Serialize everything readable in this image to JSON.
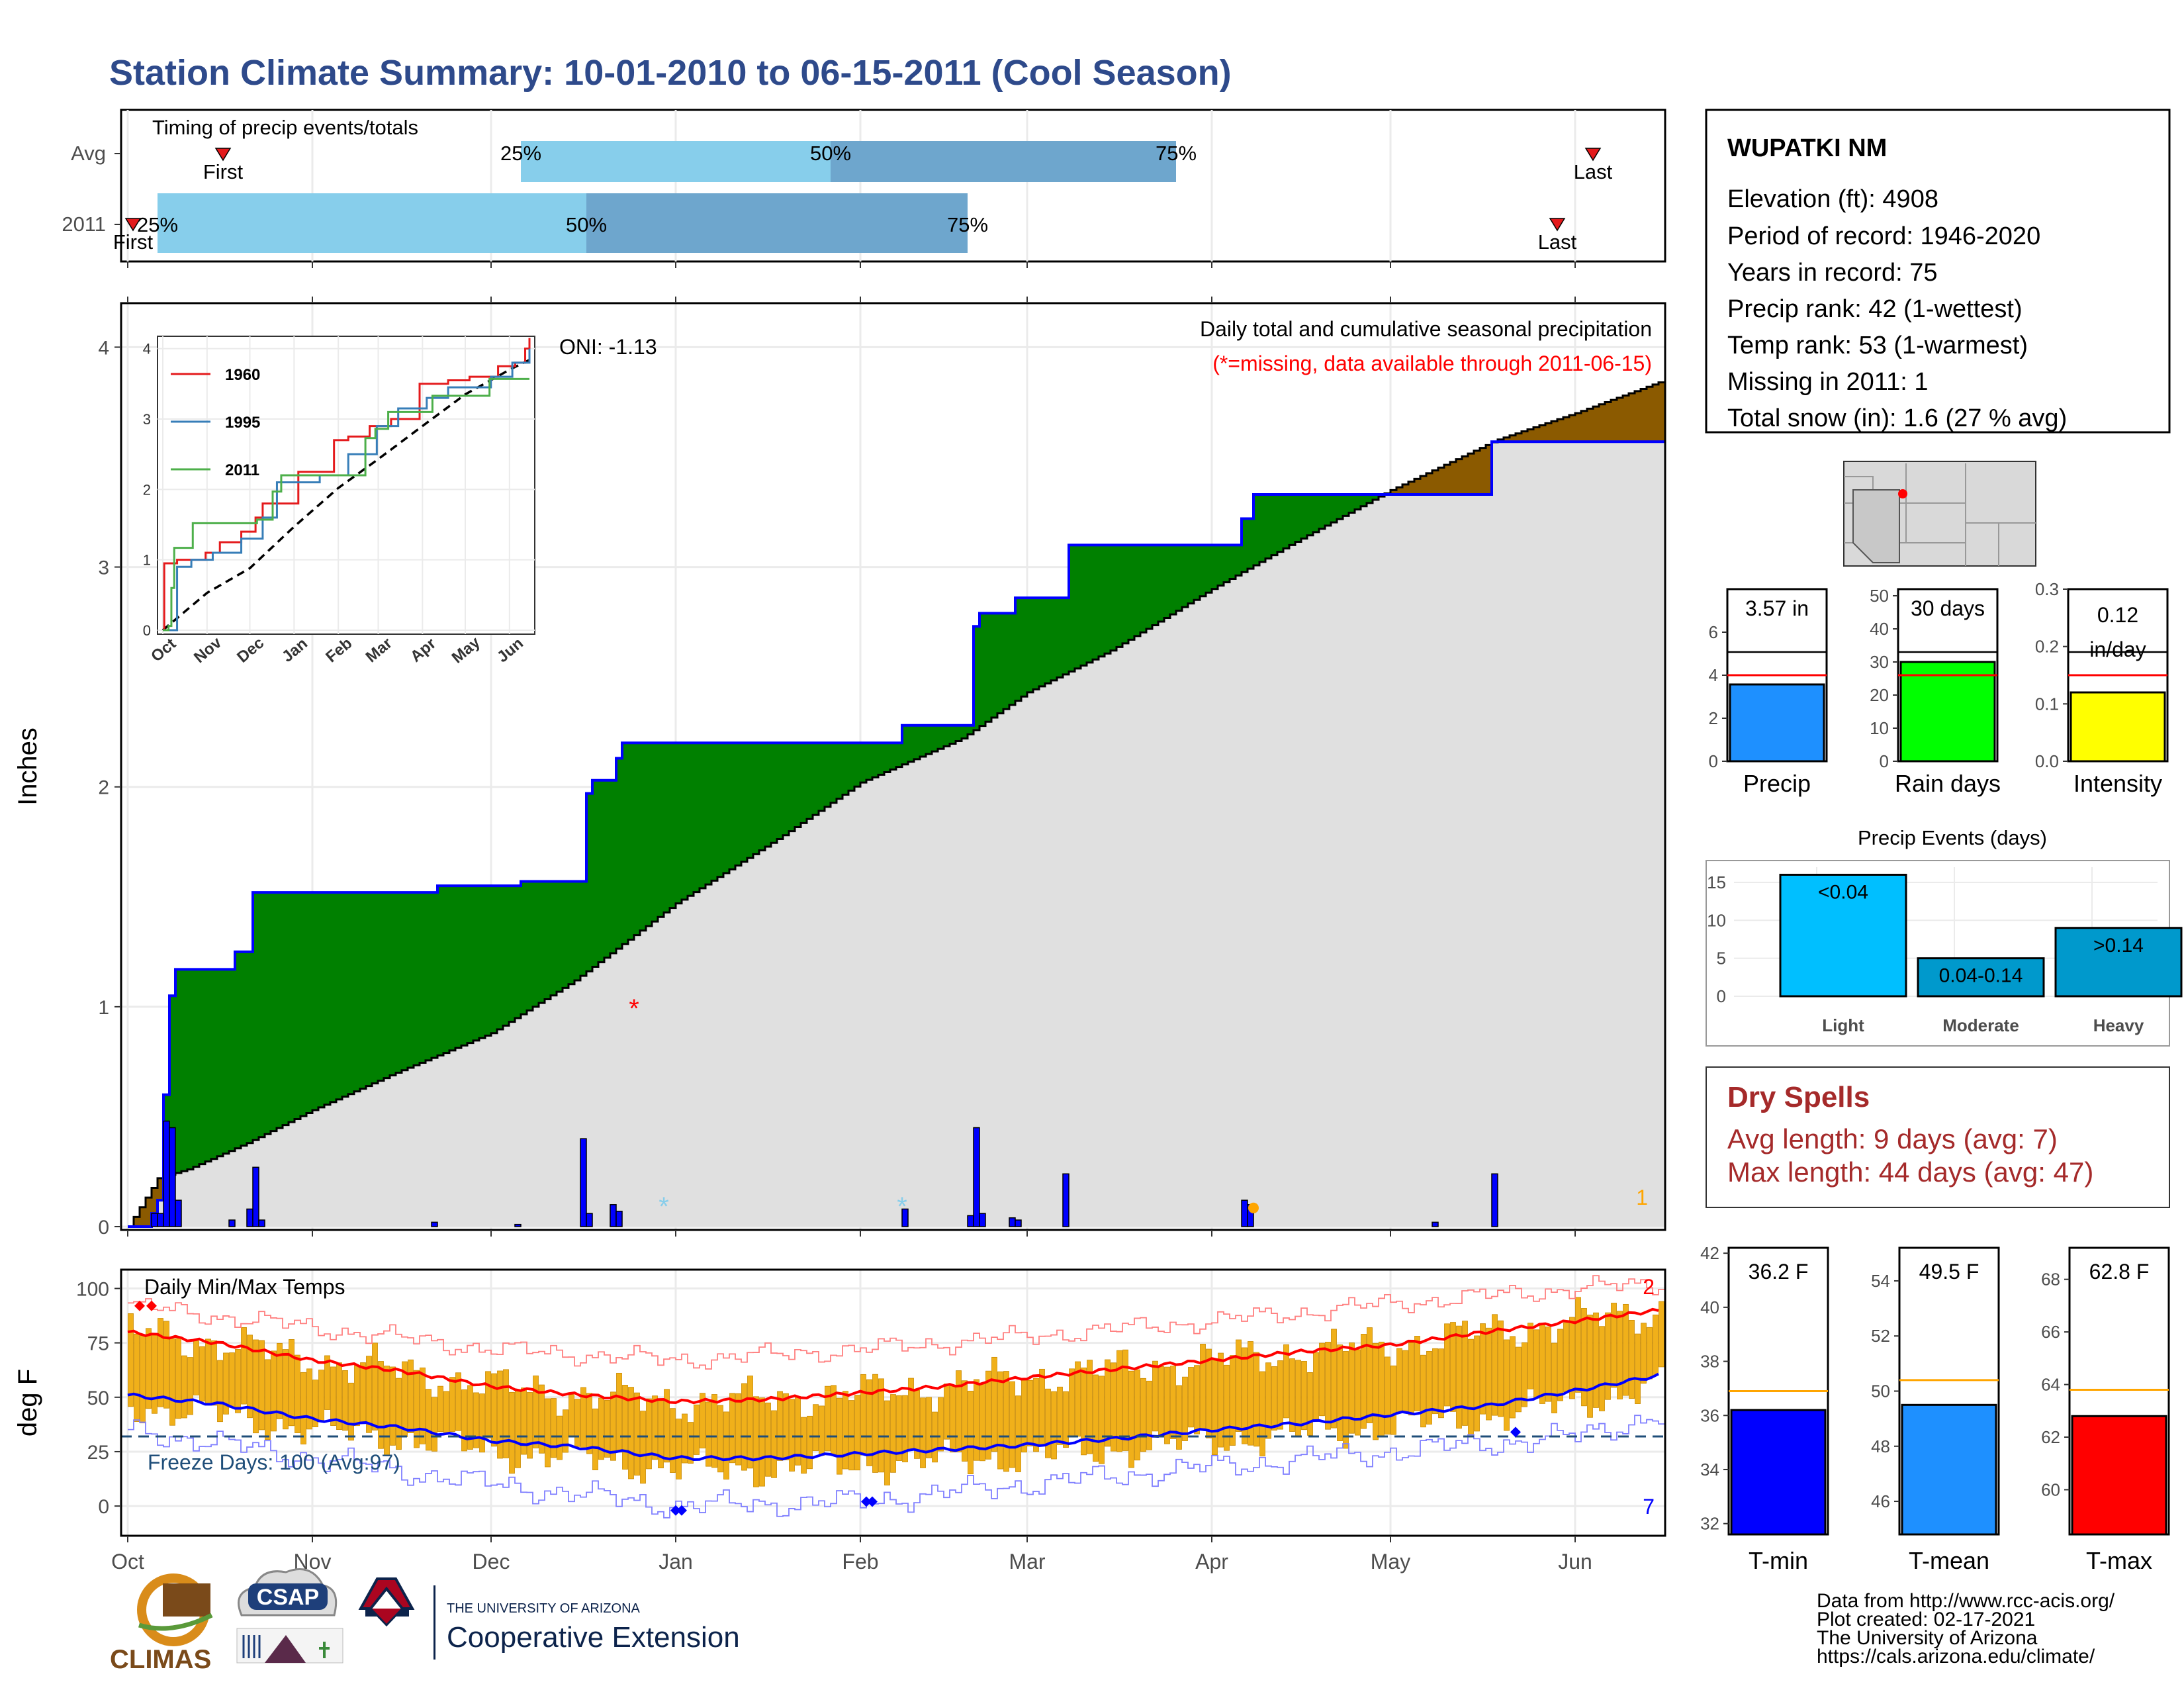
{
  "title": "Station Climate Summary: 10-01-2010 to 06-15-2011 (Cool Season)",
  "timing": {
    "title": "Timing of precip events/totals",
    "rows": [
      "Avg",
      "2011"
    ],
    "avg": {
      "first_day": 16,
      "last_day": 246,
      "q25_day": 66,
      "q50_day": 118,
      "q75_day": 176
    },
    "y2011": {
      "first_day": 0,
      "last_day": 240,
      "q25_day": 5,
      "q50_day": 77,
      "q75_day": 141
    },
    "q_labels": [
      "25%",
      "50%",
      "75%"
    ],
    "first_label": "First",
    "last_label": "Last",
    "colors": {
      "light": "#87ceeb",
      "dark": "#6ea6cd",
      "marker": "#e41a1c"
    }
  },
  "station": {
    "name": "WUPATKI NM",
    "lines": [
      "Elevation (ft): 4908",
      "Period of record: 1946-2020",
      "Years in record: 75",
      "Precip rank: 42 (1-wettest)",
      "Temp rank: 53 (1-warmest)",
      "Missing in 2011: 1",
      "Total snow (in): 1.6 (27 % avg)"
    ]
  },
  "chart_data": [
    {
      "type": "area",
      "name": "precip-main",
      "title": "Daily total and cumulative seasonal precipitation",
      "subtitle": "(*=missing, data available through 2011-06-15)",
      "oni": "ONI: -1.13",
      "ylabel": "Inches",
      "ylim": [
        0,
        4.2
      ],
      "yticks": [
        0,
        1,
        2,
        3,
        4
      ],
      "xticks": [
        {
          "label": "Oct",
          "day": 0
        },
        {
          "label": "Nov",
          "day": 31
        },
        {
          "label": "Dec",
          "day": 61
        },
        {
          "label": "Jan",
          "day": 92
        },
        {
          "label": "Feb",
          "day": 123
        },
        {
          "label": "Mar",
          "day": 151
        },
        {
          "label": "Apr",
          "day": 182
        },
        {
          "label": "May",
          "day": 212
        },
        {
          "label": "Jun",
          "day": 243
        }
      ],
      "xlim": [
        0,
        257
      ],
      "avg_cumulative": [
        [
          0,
          0.0
        ],
        [
          5,
          0.22
        ],
        [
          10,
          0.26
        ],
        [
          20,
          0.38
        ],
        [
          31,
          0.53
        ],
        [
          45,
          0.7
        ],
        [
          61,
          0.88
        ],
        [
          75,
          1.12
        ],
        [
          92,
          1.47
        ],
        [
          110,
          1.78
        ],
        [
          123,
          2.02
        ],
        [
          140,
          2.22
        ],
        [
          151,
          2.43
        ],
        [
          165,
          2.62
        ],
        [
          182,
          2.9
        ],
        [
          195,
          3.1
        ],
        [
          212,
          3.35
        ],
        [
          230,
          3.58
        ],
        [
          243,
          3.7
        ],
        [
          257,
          3.84
        ]
      ],
      "obs_cumulative": [
        [
          0,
          0.0
        ],
        [
          4,
          0.06
        ],
        [
          5,
          0.12
        ],
        [
          6,
          0.6
        ],
        [
          7,
          1.05
        ],
        [
          8,
          1.17
        ],
        [
          17,
          1.17
        ],
        [
          18,
          1.25
        ],
        [
          20,
          1.25
        ],
        [
          21,
          1.52
        ],
        [
          51,
          1.52
        ],
        [
          52,
          1.55
        ],
        [
          65,
          1.55
        ],
        [
          66,
          1.57
        ],
        [
          76,
          1.57
        ],
        [
          77,
          1.97
        ],
        [
          78,
          2.03
        ],
        [
          81,
          2.03
        ],
        [
          82,
          2.13
        ],
        [
          83,
          2.2
        ],
        [
          129,
          2.2
        ],
        [
          130,
          2.28
        ],
        [
          141,
          2.28
        ],
        [
          142,
          2.73
        ],
        [
          143,
          2.79
        ],
        [
          148,
          2.79
        ],
        [
          149,
          2.86
        ],
        [
          157,
          2.86
        ],
        [
          158,
          3.1
        ],
        [
          186,
          3.1
        ],
        [
          187,
          3.22
        ],
        [
          189,
          3.33
        ],
        [
          228,
          3.33
        ],
        [
          229,
          3.57
        ],
        [
          257,
          3.57
        ]
      ],
      "daily_precip": [
        [
          4,
          0.06
        ],
        [
          5,
          0.06
        ],
        [
          6,
          0.48
        ],
        [
          7,
          0.45
        ],
        [
          8,
          0.12
        ],
        [
          17,
          0.03
        ],
        [
          20,
          0.08
        ],
        [
          21,
          0.27
        ],
        [
          22,
          0.03
        ],
        [
          51,
          0.02
        ],
        [
          65,
          0.01
        ],
        [
          76,
          0.4
        ],
        [
          77,
          0.06
        ],
        [
          81,
          0.1
        ],
        [
          82,
          0.07
        ],
        [
          130,
          0.08
        ],
        [
          141,
          0.05
        ],
        [
          142,
          0.45
        ],
        [
          143,
          0.06
        ],
        [
          148,
          0.04
        ],
        [
          149,
          0.03
        ],
        [
          157,
          0.24
        ],
        [
          187,
          0.12
        ],
        [
          188,
          0.1
        ],
        [
          219,
          0.02
        ],
        [
          229,
          0.24
        ]
      ],
      "missing_markers": [
        {
          "day": 85,
          "value": 1.0,
          "symbol": "*",
          "color": "#ff0000"
        }
      ],
      "snow_markers": [
        {
          "day": 90,
          "value": 0.1,
          "symbol": "*",
          "color": "#87ceeb"
        },
        {
          "day": 130,
          "value": 0.1,
          "symbol": "*",
          "color": "#87ceeb"
        }
      ],
      "event_marker": {
        "day": 189,
        "value": 0.1,
        "color": "#ffa500"
      },
      "corner_count": "1",
      "colors": {
        "above": "#008000",
        "below": "#8b5a00",
        "avg_fill": "#e0e0e0",
        "obs_line": "#0000ff",
        "avg_line": "#000000",
        "bars": "#0000ff"
      }
    },
    {
      "type": "line",
      "name": "analog-years-inset",
      "xticks": [
        "Oct",
        "Nov",
        "Dec",
        "Jan",
        "Feb",
        "Mar",
        "Apr",
        "May",
        "Jun"
      ],
      "ylim": [
        0,
        4.1
      ],
      "yticks": [
        0,
        1,
        2,
        3,
        4
      ],
      "series": [
        {
          "name": "1960",
          "color": "#e41a1c",
          "values": [
            [
              0,
              0.0
            ],
            [
              1,
              0.95
            ],
            [
              8,
              0.95
            ],
            [
              10,
              1.0
            ],
            [
              30,
              1.1
            ],
            [
              40,
              1.25
            ],
            [
              55,
              1.4
            ],
            [
              65,
              1.6
            ],
            [
              70,
              1.8
            ],
            [
              85,
              1.8
            ],
            [
              95,
              2.25
            ],
            [
              110,
              2.25
            ],
            [
              120,
              2.7
            ],
            [
              130,
              2.75
            ],
            [
              145,
              2.9
            ],
            [
              160,
              3.0
            ],
            [
              180,
              3.5
            ],
            [
              200,
              3.55
            ],
            [
              215,
              3.6
            ],
            [
              235,
              3.75
            ],
            [
              247,
              3.8
            ],
            [
              254,
              4.0
            ],
            [
              257,
              4.15
            ]
          ]
        },
        {
          "name": "1995",
          "color": "#377eb8",
          "values": [
            [
              0,
              0.0
            ],
            [
              6,
              0.0
            ],
            [
              10,
              0.9
            ],
            [
              20,
              1.0
            ],
            [
              35,
              1.1
            ],
            [
              55,
              1.3
            ],
            [
              70,
              1.6
            ],
            [
              80,
              2.1
            ],
            [
              100,
              2.1
            ],
            [
              110,
              2.2
            ],
            [
              130,
              2.5
            ],
            [
              150,
              2.9
            ],
            [
              165,
              3.15
            ],
            [
              185,
              3.3
            ],
            [
              200,
              3.45
            ],
            [
              230,
              3.6
            ],
            [
              245,
              3.8
            ],
            [
              257,
              4.0
            ]
          ]
        },
        {
          "name": "2011",
          "color": "#4daf4a",
          "values": [
            [
              0,
              0.0
            ],
            [
              4,
              0.06
            ],
            [
              6,
              0.6
            ],
            [
              8,
              1.17
            ],
            [
              21,
              1.52
            ],
            [
              66,
              1.57
            ],
            [
              77,
              1.97
            ],
            [
              83,
              2.2
            ],
            [
              129,
              2.2
            ],
            [
              142,
              2.73
            ],
            [
              149,
              2.86
            ],
            [
              158,
              3.1
            ],
            [
              189,
              3.33
            ],
            [
              228,
              3.33
            ],
            [
              229,
              3.57
            ],
            [
              257,
              3.57
            ]
          ]
        }
      ],
      "avg_values": [
        [
          0,
          0.0
        ],
        [
          31,
          0.53
        ],
        [
          61,
          0.88
        ],
        [
          92,
          1.47
        ],
        [
          123,
          2.02
        ],
        [
          151,
          2.43
        ],
        [
          182,
          2.9
        ],
        [
          212,
          3.35
        ],
        [
          243,
          3.7
        ],
        [
          257,
          3.84
        ]
      ]
    },
    {
      "type": "bar",
      "name": "daily-temps",
      "title": "Daily Min/Max Temps",
      "ylabel": "deg F",
      "ylim": [
        -10,
        105
      ],
      "yticks": [
        0,
        25,
        50,
        75,
        100
      ],
      "freeze_label": "Freeze Days: 100 (Avg:97)",
      "freeze_line": 32,
      "count_top": "2",
      "count_bottom": "7",
      "avg_max": [
        [
          0,
          80
        ],
        [
          15,
          75
        ],
        [
          31,
          67
        ],
        [
          46,
          62
        ],
        [
          61,
          55
        ],
        [
          76,
          51
        ],
        [
          92,
          48
        ],
        [
          107,
          49
        ],
        [
          123,
          52
        ],
        [
          137,
          55
        ],
        [
          151,
          59
        ],
        [
          166,
          63
        ],
        [
          182,
          67
        ],
        [
          197,
          71
        ],
        [
          212,
          74
        ],
        [
          228,
          80
        ],
        [
          243,
          85
        ],
        [
          257,
          90
        ]
      ],
      "avg_min": [
        [
          0,
          51
        ],
        [
          15,
          47
        ],
        [
          31,
          40
        ],
        [
          46,
          36
        ],
        [
          61,
          30
        ],
        [
          76,
          27
        ],
        [
          92,
          22
        ],
        [
          107,
          22
        ],
        [
          123,
          24
        ],
        [
          137,
          26
        ],
        [
          151,
          28
        ],
        [
          166,
          31
        ],
        [
          182,
          35
        ],
        [
          197,
          38
        ],
        [
          212,
          42
        ],
        [
          228,
          46
        ],
        [
          243,
          53
        ],
        [
          257,
          60
        ]
      ],
      "record_high_base": [
        [
          0,
          92
        ],
        [
          31,
          82
        ],
        [
          61,
          72
        ],
        [
          92,
          67
        ],
        [
          123,
          72
        ],
        [
          151,
          78
        ],
        [
          182,
          85
        ],
        [
          212,
          93
        ],
        [
          243,
          100
        ],
        [
          257,
          102
        ]
      ],
      "record_low_base": [
        [
          0,
          35
        ],
        [
          31,
          22
        ],
        [
          61,
          10
        ],
        [
          92,
          0
        ],
        [
          123,
          2
        ],
        [
          151,
          10
        ],
        [
          182,
          18
        ],
        [
          212,
          25
        ],
        [
          243,
          32
        ],
        [
          257,
          42
        ]
      ],
      "marker_days_high": [
        2,
        4
      ],
      "marker_days_low": [
        92,
        93,
        124,
        125,
        233
      ],
      "colors": {
        "bars": "#f0b01a",
        "bar_edge": "#c98a00",
        "avg_max": "#ff0000",
        "avg_min": "#0000ff",
        "rec_high": "#ff8080",
        "rec_low": "#8080ff",
        "freeze": "#1f4e79"
      }
    },
    {
      "type": "bar",
      "name": "precip-summary",
      "categories": [
        "Precip",
        "Rain days",
        "Intensity"
      ],
      "panels": [
        {
          "label": "Precip",
          "value": 3.57,
          "avg": 4.0,
          "ylim": [
            0,
            8
          ],
          "yticks": [
            0,
            2,
            4,
            6
          ],
          "color": "#1e90ff",
          "box_lines": [
            "3.57 in"
          ]
        },
        {
          "label": "Rain days",
          "value": 30,
          "avg": 26,
          "ylim": [
            0,
            52
          ],
          "yticks": [
            0,
            10,
            20,
            30,
            40,
            50
          ],
          "color": "#00ff00",
          "box_lines": [
            "30 days"
          ]
        },
        {
          "label": "Intensity",
          "value": 0.12,
          "avg": 0.15,
          "ylim": [
            0,
            0.3
          ],
          "yticks": [
            "0.0",
            "0.1",
            "0.2",
            "0.3"
          ],
          "color": "#ffff00",
          "box_lines": [
            "0.12",
            "in/day"
          ]
        }
      ]
    },
    {
      "type": "bar",
      "name": "precip-events",
      "title": "Precip Events (days)",
      "categories": [
        "Light",
        "Moderate",
        "Heavy"
      ],
      "values": [
        16,
        5,
        9
      ],
      "labels": [
        "<0.04",
        "0.04-0.14",
        ">0.14"
      ],
      "ylim": [
        0,
        17
      ],
      "yticks": [
        0,
        5,
        10,
        15
      ],
      "colors": [
        "#00bfff",
        "#0099cc",
        "#0099cc"
      ]
    },
    {
      "type": "bar",
      "name": "temp-summary",
      "categories": [
        "T-min",
        "T-mean",
        "T-max"
      ],
      "panels": [
        {
          "label": "T-min",
          "value": 36.2,
          "avg": 36.9,
          "ylim": [
            31.6,
            42.2
          ],
          "yticks": [
            32,
            34,
            36,
            38,
            40,
            42
          ],
          "color": "#0000ff",
          "box": "36.2 F"
        },
        {
          "label": "T-mean",
          "value": 49.5,
          "avg": 50.4,
          "ylim": [
            44.8,
            55.2
          ],
          "yticks": [
            46,
            48,
            50,
            52,
            54
          ],
          "color": "#1e90ff",
          "box": "49.5 F"
        },
        {
          "label": "T-max",
          "value": 62.8,
          "avg": 63.8,
          "ylim": [
            58.3,
            69.2
          ],
          "yticks": [
            60,
            62,
            64,
            66,
            68
          ],
          "color": "#ff0000",
          "box": "62.8 F"
        }
      ]
    }
  ],
  "dry_spells": {
    "title": "Dry Spells",
    "avg_length": "Avg length: 9 days (avg: 7)",
    "max_length": "Max length: 44 days (avg: 47)",
    "color": "#a52a2a"
  },
  "credits": {
    "lines": [
      "Data from http://www.rcc-acis.org/",
      "Plot created: 02-17-2021",
      "The University of Arizona",
      "https://cals.arizona.edu/climate/"
    ]
  },
  "logos": {
    "climas": "CLIMAS",
    "csap": "CSAP",
    "ua_header": "THE UNIVERSITY OF ARIZONA",
    "ua_sub": "Cooperative Extension"
  }
}
